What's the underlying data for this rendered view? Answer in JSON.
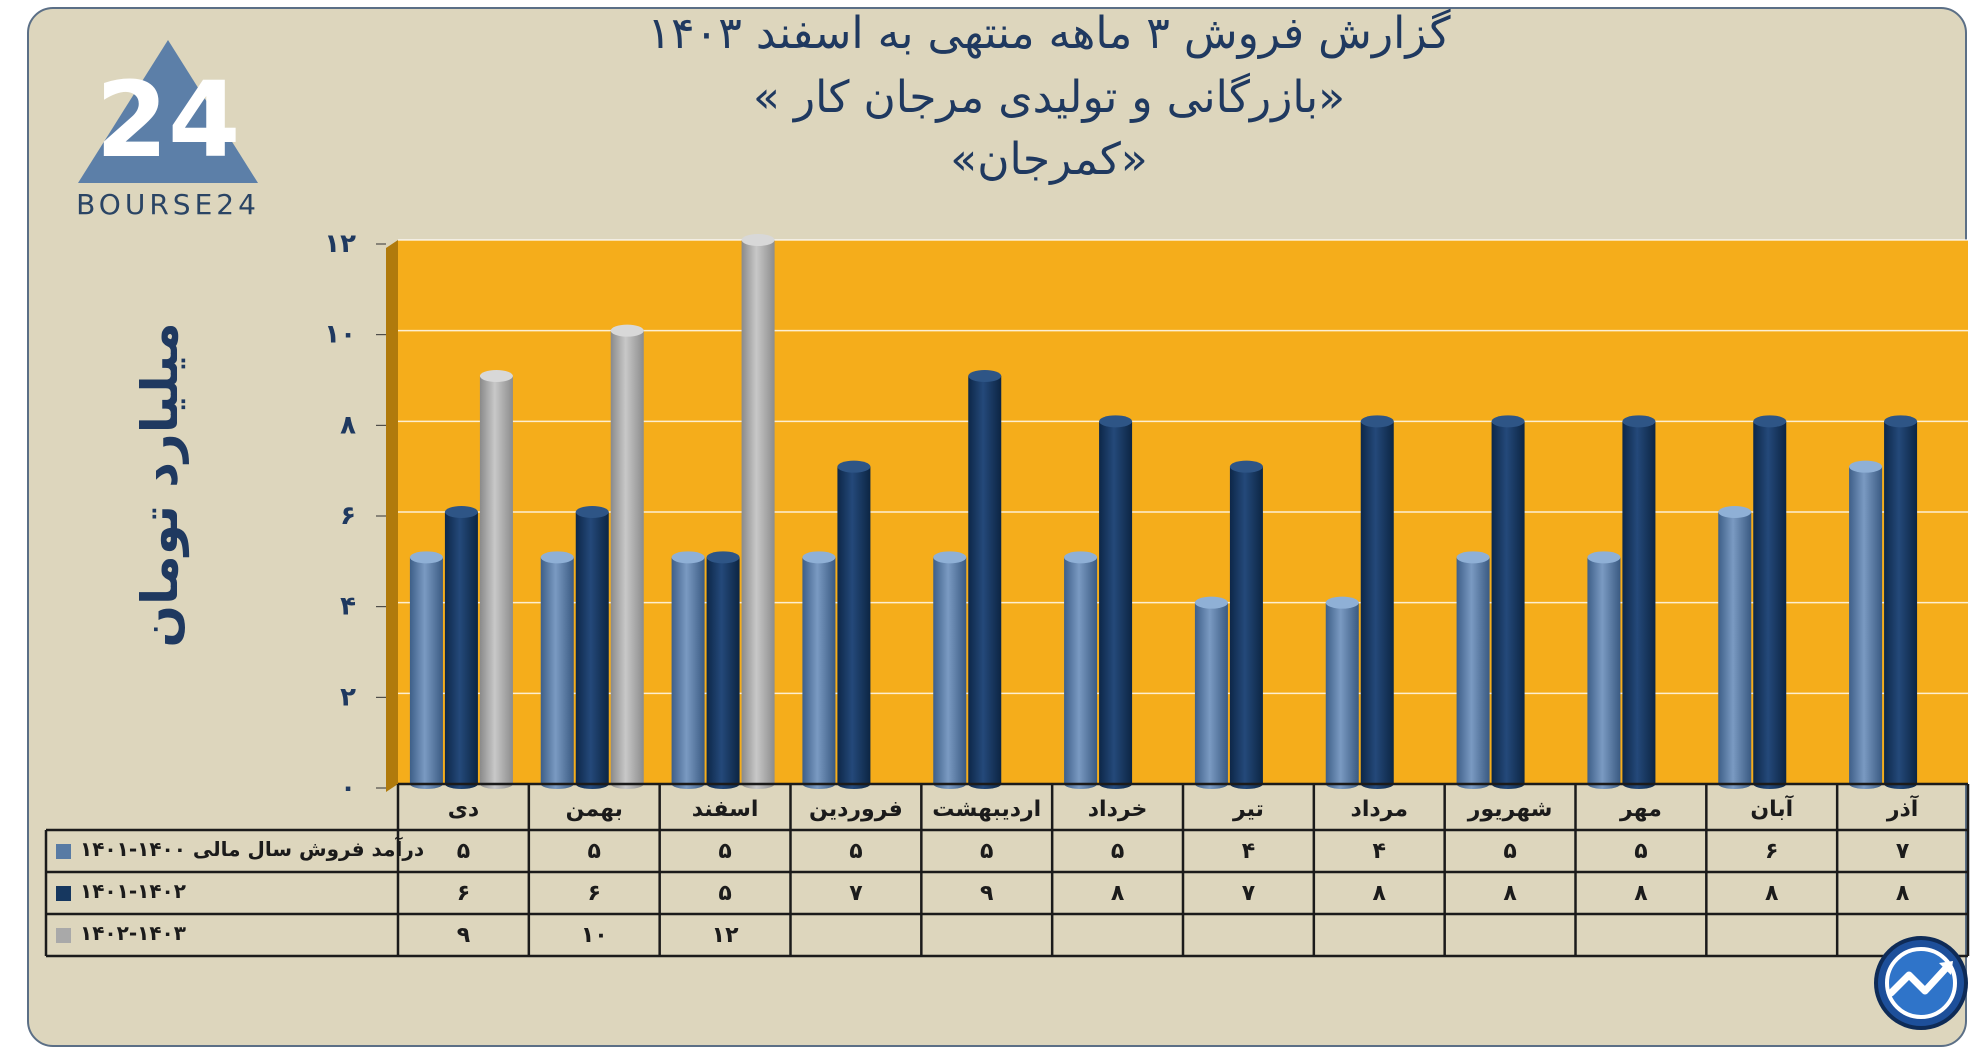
{
  "title": {
    "line1": "گزارش  فروش ۳ ماهه منتهی به اسفند ۱۴۰۳",
    "line2": "«بازرگانی و تولیدی مرجان کار »",
    "line3": "«کمرجان»"
  },
  "logo": {
    "text": "BOURSE24",
    "mark": "24"
  },
  "colors": {
    "background": "#ddd6bd",
    "plot": "#f5ad1b",
    "series1": "#587ba4",
    "series2": "#16375f",
    "series3": "#a9a9a9",
    "text": "#1f3960"
  },
  "chart_data": {
    "type": "bar",
    "title": "گزارش  فروش ۳ ماهه منتهی به اسفند ۱۴۰۳",
    "ylabel": "میلیارد تومان",
    "xlabel": "",
    "ylim": [
      0,
      12
    ],
    "yticks": [
      0,
      2,
      4,
      6,
      8,
      10,
      12
    ],
    "ytick_labels": [
      "۰",
      "۲",
      "۴",
      "۶",
      "۸",
      "۱۰",
      "۱۲"
    ],
    "grid": true,
    "legend": "table-left",
    "categories": [
      "دی",
      "بهمن",
      "اسفند",
      "فروردین",
      "اردیبهشت",
      "خرداد",
      "تیر",
      "مرداد",
      "شهریور",
      "مهر",
      "آبان",
      "آذر"
    ],
    "series": [
      {
        "name": "درآمد فروش سال مالی ۱۴۰۰-۱۴۰۱",
        "values": [
          5,
          5,
          5,
          5,
          5,
          5,
          4,
          4,
          5,
          5,
          6,
          7
        ]
      },
      {
        "name": "۱۴۰۱-۱۴۰۲",
        "values": [
          6,
          6,
          5,
          7,
          9,
          8,
          7,
          8,
          8,
          8,
          8,
          8
        ]
      },
      {
        "name": "۱۴۰۲-۱۴۰۳",
        "values": [
          9,
          10,
          12,
          null,
          null,
          null,
          null,
          null,
          null,
          null,
          null,
          null
        ]
      }
    ],
    "table_values": [
      [
        "۵",
        "۵",
        "۵",
        "۵",
        "۵",
        "۵",
        "۴",
        "۴",
        "۵",
        "۵",
        "۶",
        "۷"
      ],
      [
        "۶",
        "۶",
        "۵",
        "۷",
        "۹",
        "۸",
        "۷",
        "۸",
        "۸",
        "۸",
        "۸",
        "۸"
      ],
      [
        "۹",
        "۱۰",
        "۱۲",
        "",
        "",
        "",
        "",
        "",
        "",
        "",
        "",
        ""
      ]
    ]
  }
}
